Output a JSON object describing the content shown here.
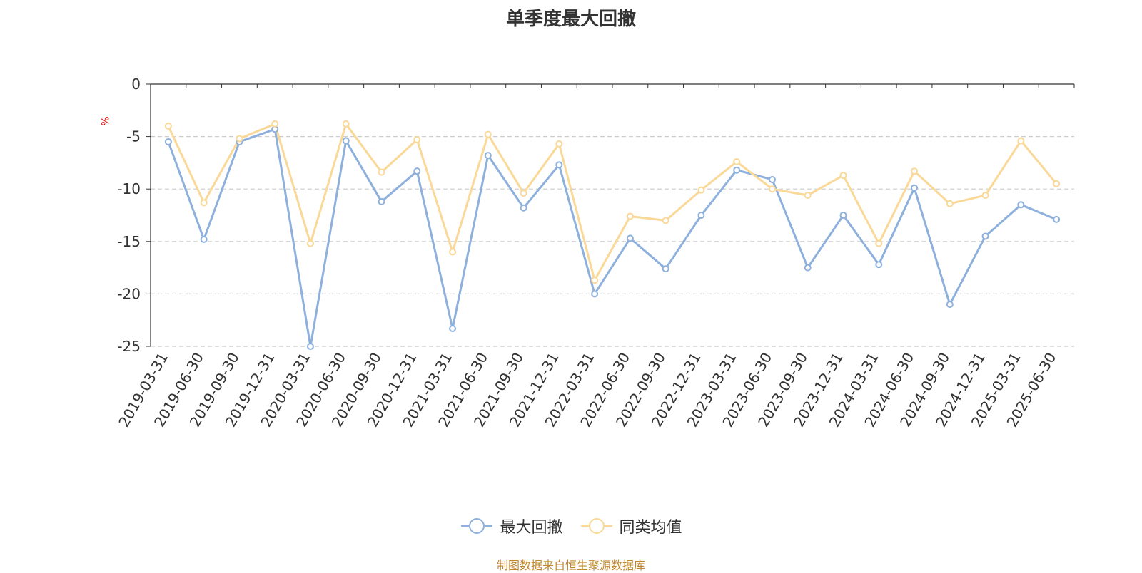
{
  "chart_data": {
    "type": "line",
    "title": "单季度最大回撤",
    "ylabel": "%",
    "ylim": [
      -25,
      0
    ],
    "yticks": [
      0,
      -5,
      -10,
      -15,
      -20,
      -25
    ],
    "grid": true,
    "legend_position": "bottom",
    "categories": [
      "2019-03-31",
      "2019-06-30",
      "2019-09-30",
      "2019-12-31",
      "2020-03-31",
      "2020-06-30",
      "2020-09-30",
      "2020-12-31",
      "2021-03-31",
      "2021-06-30",
      "2021-09-30",
      "2021-12-31",
      "2022-03-31",
      "2022-06-30",
      "2022-09-30",
      "2022-12-31",
      "2023-03-31",
      "2023-06-30",
      "2023-09-30",
      "2023-12-31",
      "2024-03-31",
      "2024-06-30",
      "2024-09-30",
      "2024-12-31",
      "2025-03-31",
      "2025-06-30"
    ],
    "series": [
      {
        "name": "最大回撤",
        "color": "#8eb0dc",
        "values": [
          -5.5,
          -14.8,
          -5.5,
          -4.3,
          -25.0,
          -5.4,
          -11.2,
          -8.3,
          -23.3,
          -6.8,
          -11.8,
          -7.7,
          -20.0,
          -14.7,
          -17.6,
          -12.5,
          -8.2,
          -9.1,
          -17.5,
          -12.5,
          -17.2,
          -9.9,
          -21.0,
          -14.5,
          -11.5,
          -12.9
        ]
      },
      {
        "name": "同类均值",
        "color": "#fad898",
        "values": [
          -4.0,
          -11.3,
          -5.2,
          -3.8,
          -15.2,
          -3.8,
          -8.4,
          -5.3,
          -16.0,
          -4.8,
          -10.4,
          -5.7,
          -18.7,
          -12.6,
          -13.0,
          -10.1,
          -7.4,
          -10.0,
          -10.6,
          -8.7,
          -15.2,
          -8.3,
          -11.4,
          -10.6,
          -5.4,
          -9.5
        ]
      }
    ],
    "source_note": "制图数据来自恒生聚源数据库"
  }
}
